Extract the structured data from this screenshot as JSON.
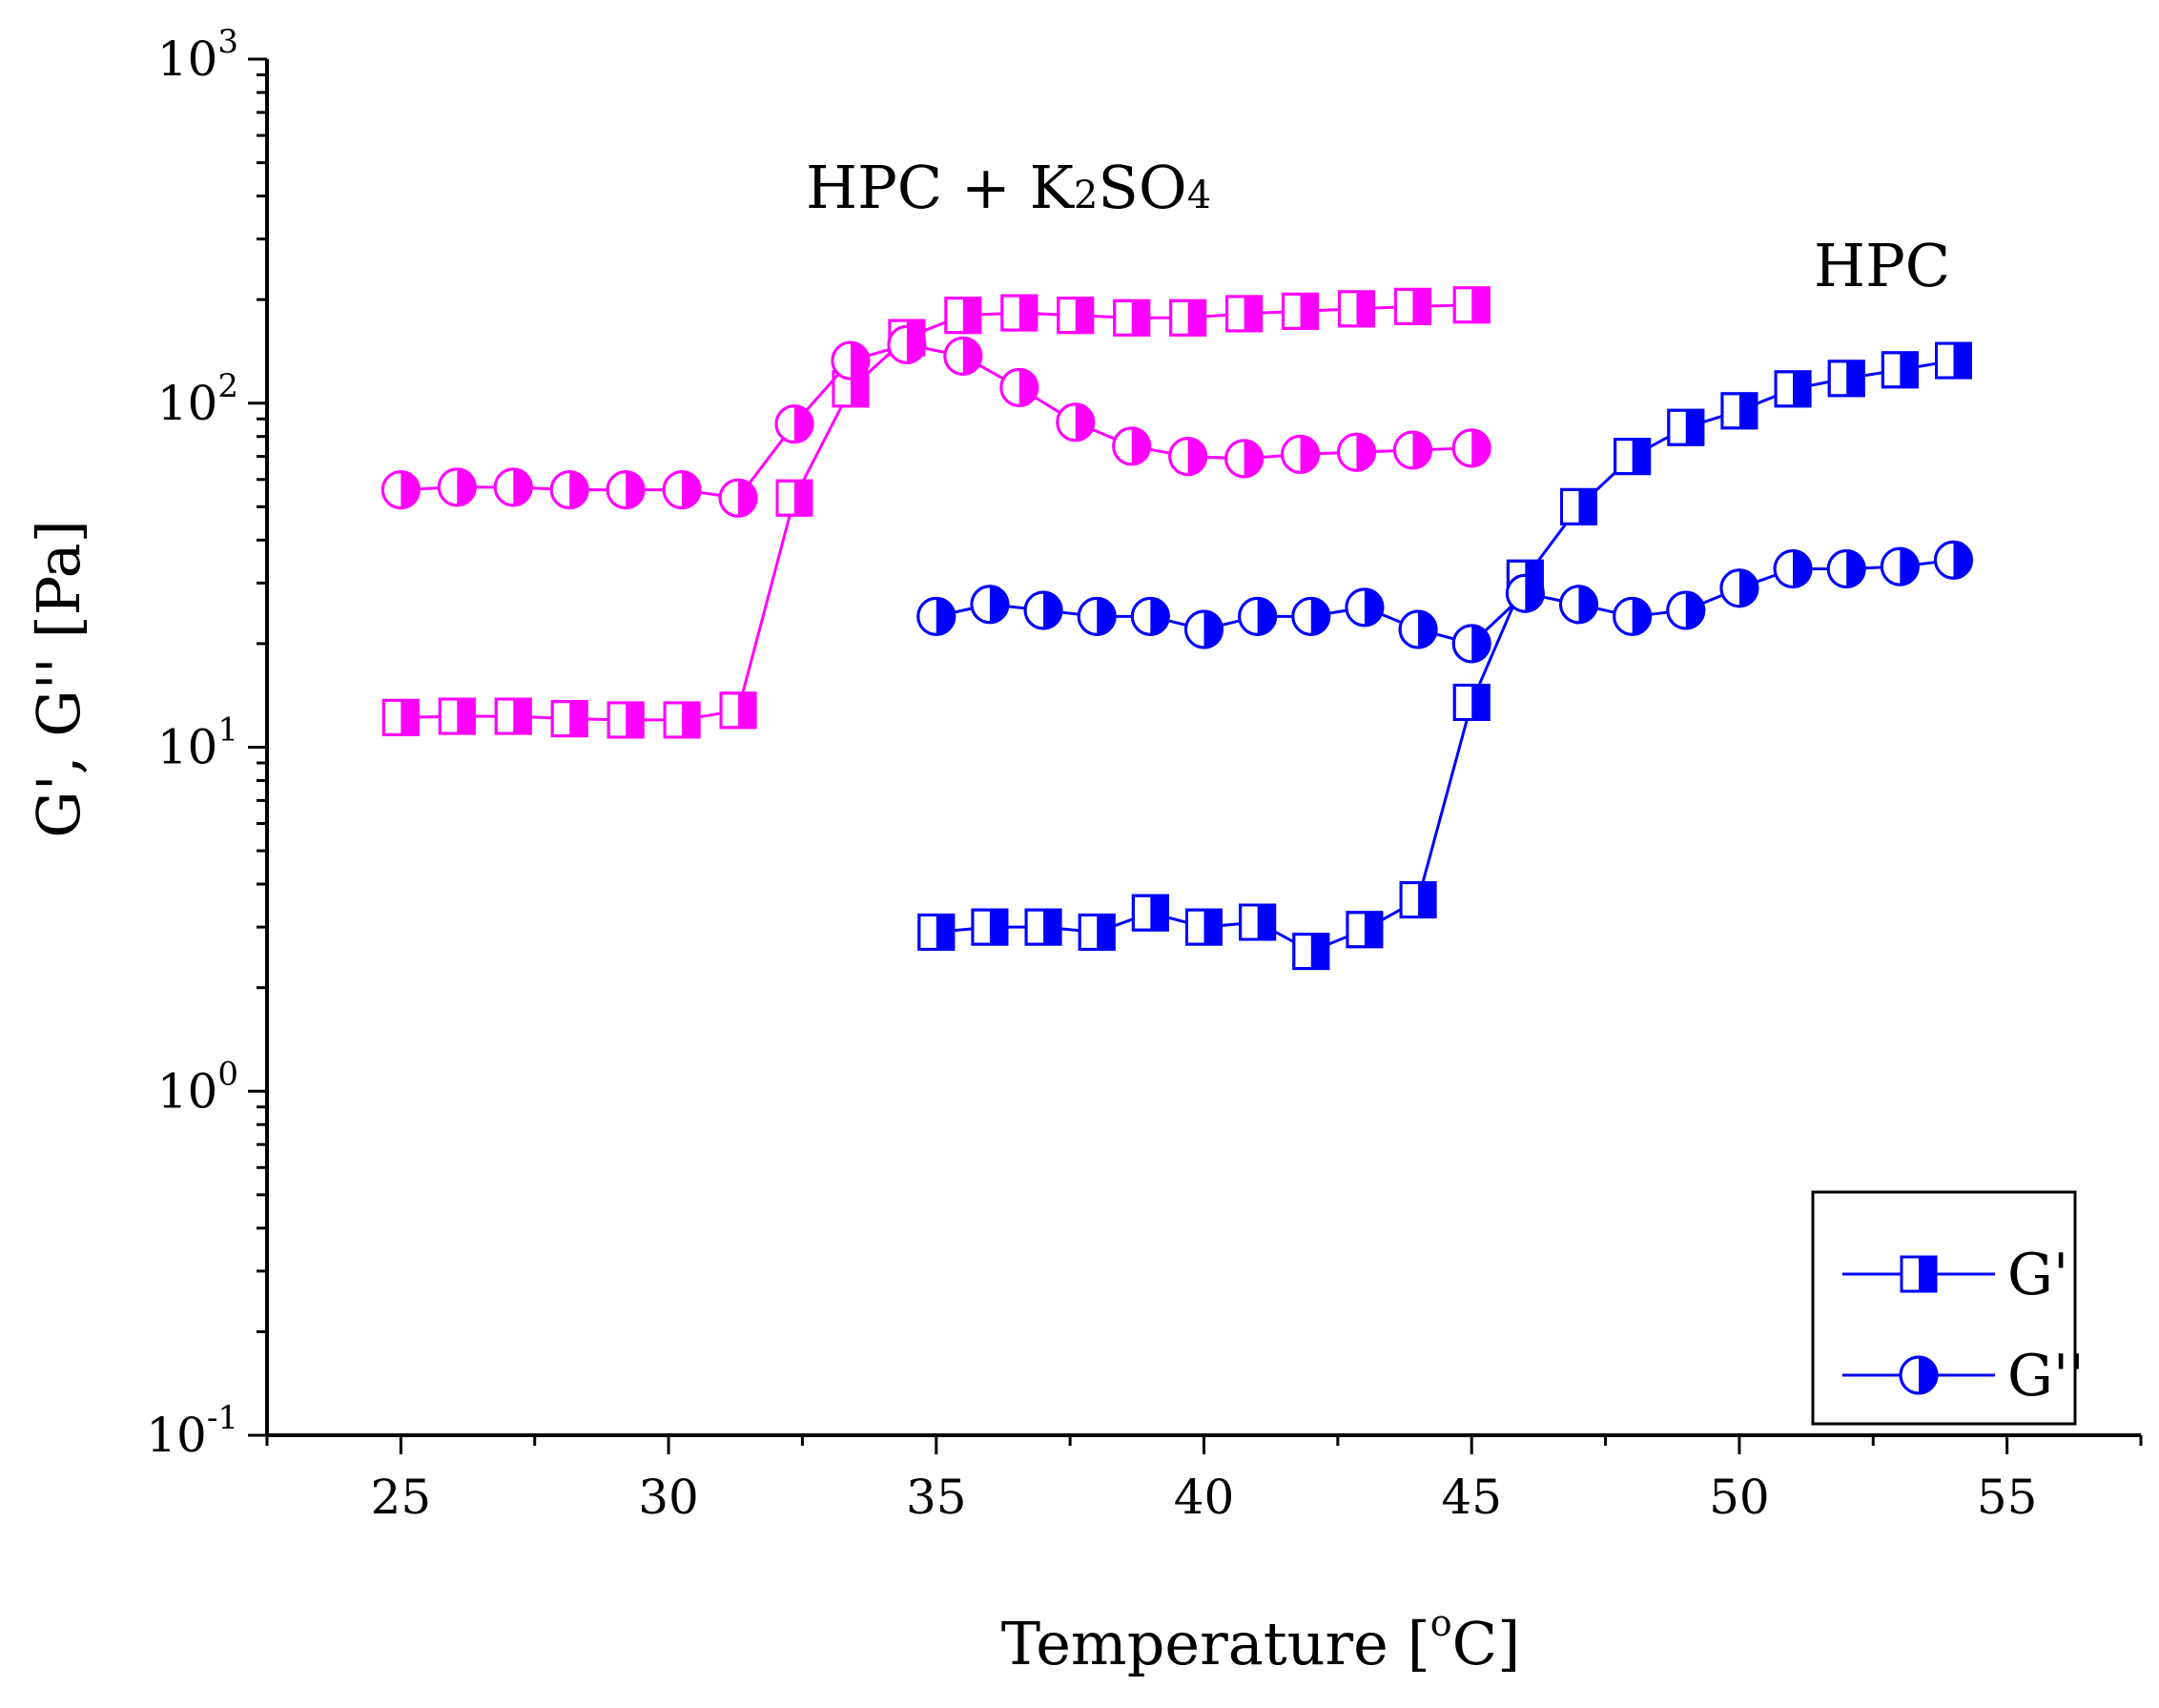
{
  "chart_data": {
    "type": "scatter",
    "xlabel": "Temperature [°C]",
    "xlabel_parts": {
      "pre": "Temperature [",
      "sup": "o",
      "post": "C]"
    },
    "ylabel": "G', G'' [Pa]",
    "xlim": [
      22.5,
      57.5
    ],
    "ylim": [
      0.1,
      1000
    ],
    "yscale": "log",
    "xticks": [
      25,
      30,
      35,
      40,
      45,
      50,
      55
    ],
    "yticks": [
      {
        "value": 0.1,
        "base": "10",
        "exp": "-1"
      },
      {
        "value": 1,
        "base": "10",
        "exp": "0"
      },
      {
        "value": 10,
        "base": "10",
        "exp": "1"
      },
      {
        "value": 100,
        "base": "10",
        "exp": "2"
      },
      {
        "value": 1000,
        "base": "10",
        "exp": "3"
      }
    ],
    "annotations": [
      {
        "id": "hpc-k2so4",
        "text": "HPC + K2SO4",
        "parts": [
          "HPC + K",
          "2",
          "SO",
          "4"
        ]
      },
      {
        "id": "hpc",
        "text": "HPC"
      }
    ],
    "legend": {
      "location": "bottom-right",
      "entries": [
        {
          "label": "G'",
          "marker": "half-square"
        },
        {
          "label": "G''",
          "marker": "half-circle"
        }
      ]
    },
    "series": [
      {
        "name": "HPC + K2SO4 G'",
        "color": "#ff00ff",
        "marker": "half-square",
        "x": [
          25,
          26.05,
          27.1,
          28.15,
          29.2,
          30.25,
          31.3,
          32.35,
          33.4,
          34.45,
          35.5,
          36.55,
          37.6,
          38.65,
          39.7,
          40.75,
          41.8,
          42.85,
          43.9,
          45
        ],
        "y": [
          12.2,
          12.3,
          12.3,
          12.1,
          12.0,
          12.0,
          12.8,
          53,
          110,
          155,
          180,
          183,
          180,
          177,
          177,
          182,
          185,
          188,
          191,
          193
        ]
      },
      {
        "name": "HPC + K2SO4 G''",
        "color": "#ff00ff",
        "marker": "half-circle",
        "x": [
          25,
          26.05,
          27.1,
          28.15,
          29.2,
          30.25,
          31.3,
          32.35,
          33.4,
          34.45,
          35.5,
          36.55,
          37.6,
          38.65,
          39.7,
          40.75,
          41.8,
          42.85,
          43.9,
          45
        ],
        "y": [
          56,
          57,
          57,
          56,
          56,
          56,
          53,
          87,
          133,
          148,
          137,
          111,
          88,
          75,
          70,
          69,
          71,
          72,
          73,
          74
        ]
      },
      {
        "name": "HPC G'",
        "color": "#0000ff",
        "marker": "half-square",
        "x": [
          35,
          36,
          37,
          38,
          39,
          40,
          41,
          42,
          43,
          44,
          45,
          46,
          47,
          48,
          49,
          50,
          51,
          52,
          53,
          54
        ],
        "y": [
          2.9,
          3.0,
          3.0,
          2.9,
          3.3,
          3.0,
          3.1,
          2.55,
          2.95,
          3.6,
          13.5,
          31,
          50,
          70,
          85,
          95,
          110,
          118,
          125,
          133
        ]
      },
      {
        "name": "HPC G''",
        "color": "#0000ff",
        "marker": "half-circle",
        "x": [
          35,
          36,
          37,
          38,
          39,
          40,
          41,
          42,
          43,
          44,
          45,
          46,
          47,
          48,
          49,
          50,
          51,
          52,
          53,
          54
        ],
        "y": [
          24,
          26,
          25,
          24,
          24,
          22,
          24,
          24,
          25.5,
          22,
          20,
          28,
          26,
          24,
          25,
          29,
          33,
          33,
          33.5,
          35
        ]
      }
    ]
  }
}
